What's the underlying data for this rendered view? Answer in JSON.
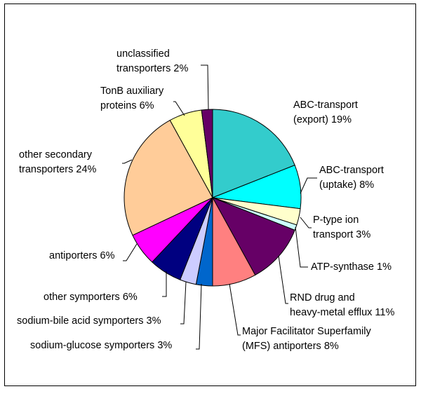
{
  "chart_data": {
    "type": "pie",
    "title": "",
    "start_angle_deg": 0,
    "direction": "clockwise",
    "slice_border": "#000000",
    "slices": [
      {
        "name": "ABC-transport (export)",
        "value": 19,
        "label": [
          "ABC-transport",
          "(export) 19%"
        ],
        "color": "#33CCCC"
      },
      {
        "name": "ABC-transport (uptake)",
        "value": 8,
        "label": [
          "ABC-transport",
          "(uptake) 8%"
        ],
        "color": "#00FFFF"
      },
      {
        "name": "P-type ion transport",
        "value": 3,
        "label": [
          "P-type ion",
          "transport 3%"
        ],
        "color": "#FFFFCC"
      },
      {
        "name": "ATP-synthase",
        "value": 1,
        "label": [
          "ATP-synthase 1%"
        ],
        "color": "#CCFFFF"
      },
      {
        "name": "RND drug and heavy-metal efflux",
        "value": 11,
        "label": [
          "RND drug and",
          "heavy-metal efflux 11%"
        ],
        "color": "#660066"
      },
      {
        "name": "Major Facilitator Superfamily (MFS) antiporters",
        "value": 8,
        "label": [
          "Major Facilitator Superfamily",
          "(MFS) antiporters 8%"
        ],
        "color": "#FF8080"
      },
      {
        "name": "sodium-glucose symporters",
        "value": 3,
        "label": [
          "sodium-glucose symporters 3%"
        ],
        "color": "#0066CC"
      },
      {
        "name": "sodium-bile acid symporters",
        "value": 3,
        "label": [
          "sodium-bile acid symporters 3%"
        ],
        "color": "#CCCCFF"
      },
      {
        "name": "other symporters",
        "value": 6,
        "label": [
          "other symporters 6%"
        ],
        "color": "#000080"
      },
      {
        "name": "antiporters",
        "value": 6,
        "label": [
          "antiporters 6%"
        ],
        "color": "#FF00FF"
      },
      {
        "name": "other secondary transporters",
        "value": 24,
        "label": [
          "other secondary",
          "transporters 24%"
        ],
        "color": "#FFCC99"
      },
      {
        "name": "TonB auxiliary proteins",
        "value": 6,
        "label": [
          "TonB auxiliary",
          "proteins 6%"
        ],
        "color": "#FFFF99"
      },
      {
        "name": "unclassified transporters",
        "value": 2,
        "label": [
          "unclassified",
          "transporters 2%"
        ],
        "color": "#660066"
      }
    ]
  }
}
